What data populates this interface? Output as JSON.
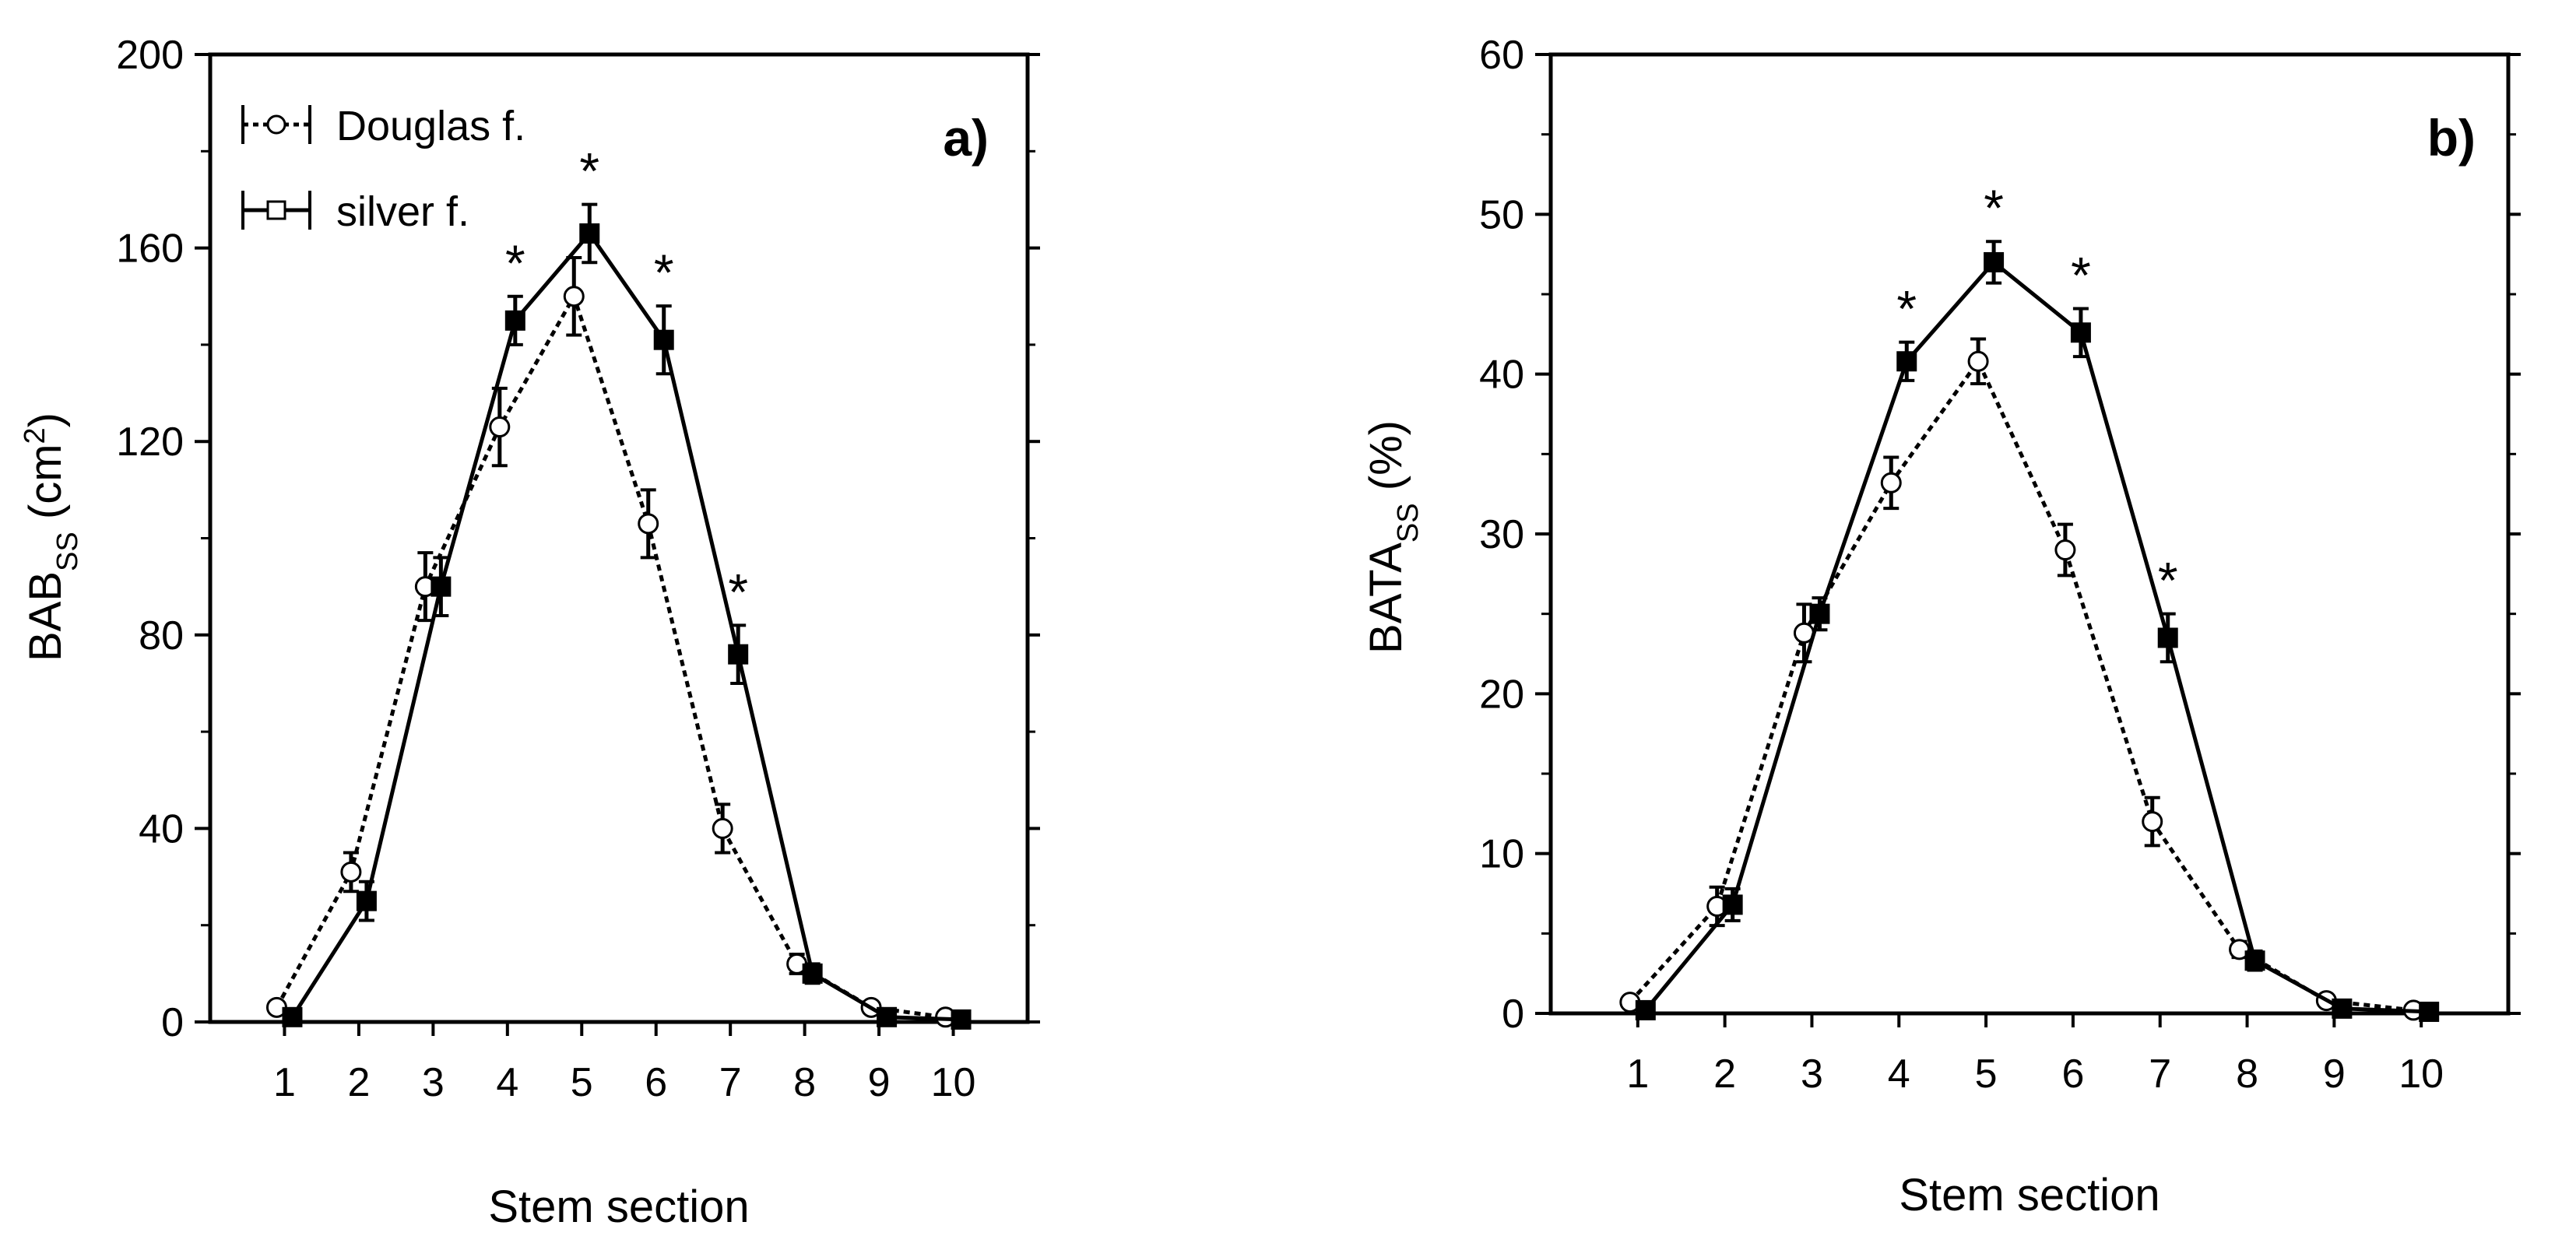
{
  "chart_data": [
    {
      "type": "line",
      "panel_label": "a)",
      "xlabel": "Stem section",
      "ylabel": "BAB",
      "ylabel_sub": "SS",
      "ylabel_unit_open": "(cm",
      "ylabel_unit_sup": "2",
      "ylabel_unit_close": ")",
      "categories": [
        "1",
        "2",
        "3",
        "4",
        "5",
        "6",
        "7",
        "8",
        "9",
        "10"
      ],
      "x": [
        1,
        2,
        3,
        4,
        5,
        6,
        7,
        8,
        9,
        10
      ],
      "xlim": [
        0,
        11
      ],
      "ylim": [
        0,
        200
      ],
      "yticks": [
        0,
        40,
        80,
        120,
        160,
        200
      ],
      "grid": false,
      "legend": {
        "position": "top-left",
        "entries": [
          "Douglas f.",
          "silver f."
        ]
      },
      "series": [
        {
          "name": "Douglas f.",
          "style": "dotted",
          "marker": "open-circle",
          "values": [
            3,
            31,
            90,
            123,
            150,
            103,
            40,
            12,
            3,
            1
          ],
          "errors": [
            0,
            4,
            7,
            8,
            8,
            7,
            5,
            2,
            0.5,
            0.3
          ]
        },
        {
          "name": "silver f.",
          "style": "solid",
          "marker": "filled-square",
          "values": [
            1,
            25,
            90,
            145,
            163,
            141,
            76,
            10,
            1,
            0.5
          ],
          "errors": [
            0,
            4,
            6,
            5,
            6,
            7,
            6,
            2,
            0.5,
            0.3
          ]
        }
      ],
      "significance_markers": [
        4,
        5,
        6,
        7
      ],
      "significance_symbol": "*"
    },
    {
      "type": "line",
      "panel_label": "b)",
      "xlabel": "Stem section",
      "ylabel": "BATA",
      "ylabel_sub": "SS",
      "ylabel_unit": "(%)",
      "categories": [
        "1",
        "2",
        "3",
        "4",
        "5",
        "6",
        "7",
        "8",
        "9",
        "10"
      ],
      "x": [
        1,
        2,
        3,
        4,
        5,
        6,
        7,
        8,
        9,
        10
      ],
      "xlim": [
        0,
        11
      ],
      "ylim": [
        0,
        60
      ],
      "yticks": [
        0,
        10,
        20,
        30,
        40,
        50,
        60
      ],
      "grid": false,
      "series": [
        {
          "name": "Douglas f.",
          "style": "dotted",
          "marker": "open-circle",
          "values": [
            0.7,
            6.7,
            23.8,
            33.2,
            40.8,
            29,
            12,
            4,
            0.8,
            0.2
          ],
          "errors": [
            0,
            1.2,
            1.8,
            1.6,
            1.4,
            1.6,
            1.5,
            0.5,
            0.2,
            0.1
          ]
        },
        {
          "name": "silver f.",
          "style": "solid",
          "marker": "filled-square",
          "values": [
            0.2,
            6.8,
            25,
            40.8,
            47,
            42.6,
            23.5,
            3.3,
            0.3,
            0.1
          ],
          "errors": [
            0,
            1,
            1,
            1.2,
            1.3,
            1.5,
            1.5,
            0.6,
            0.2,
            0.1
          ]
        }
      ],
      "significance_markers": [
        4,
        5,
        6,
        7
      ],
      "significance_symbol": "*"
    }
  ]
}
